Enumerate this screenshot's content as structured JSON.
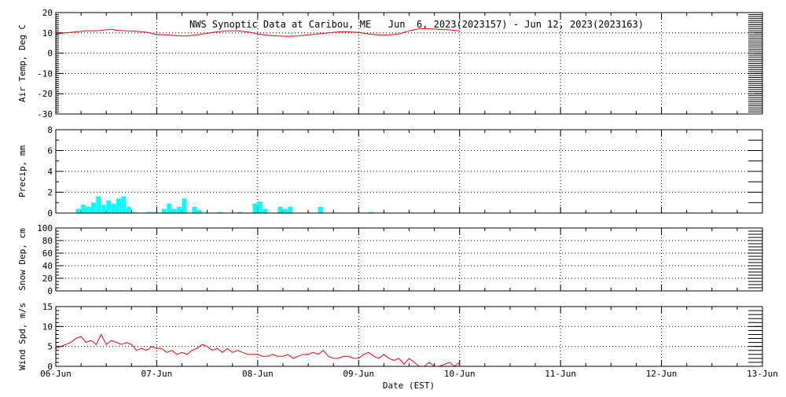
{
  "chart_data": {
    "type": "multi-panel-timeseries",
    "title": "NWS Synoptic Data at Caribou, ME   Jun  6, 2023(2023157) - Jun 12, 2023(2023163)",
    "xlabel": "Date (EST)",
    "x_ticks": [
      "06-Jun",
      "07-Jun",
      "08-Jun",
      "09-Jun",
      "10-Jun",
      "11-Jun",
      "12-Jun",
      "13-Jun"
    ],
    "x_range_days": [
      0,
      7
    ],
    "colors": {
      "line": "#ff0000",
      "bar": "#00ffff",
      "axis": "#000000"
    },
    "grid": "dotted vertical at day boundaries, dotted horizontal at labeled ticks",
    "panels": [
      {
        "id": "air-temp",
        "type": "line",
        "ylabel": "Air Temp, Deg C",
        "ylim": [
          -30,
          20
        ],
        "yticks": [
          -30,
          -20,
          -10,
          0,
          10,
          20
        ],
        "series": [
          {
            "x": [
              0.0,
              0.1,
              0.2,
              0.3,
              0.4,
              0.5,
              0.55,
              0.6,
              0.7,
              0.8,
              0.9,
              1.0,
              1.1,
              1.2,
              1.25,
              1.3,
              1.4,
              1.5,
              1.6,
              1.7,
              1.8,
              1.9,
              2.0,
              2.1,
              2.2,
              2.3,
              2.4,
              2.5,
              2.6,
              2.7,
              2.8,
              2.9,
              3.0,
              3.1,
              3.2,
              3.3,
              3.4,
              3.5,
              3.6,
              3.7,
              3.8,
              3.9,
              4.0
            ],
            "y": [
              9.5,
              10,
              10.5,
              11,
              11,
              11.5,
              11.8,
              11.3,
              11,
              10.8,
              10.3,
              9.2,
              9,
              8.7,
              8.5,
              8.5,
              9,
              9.8,
              10.5,
              11,
              11,
              10.5,
              9.5,
              8.8,
              8.5,
              8.3,
              8.5,
              9,
              9.5,
              10,
              10.5,
              10.5,
              10.2,
              9.5,
              9,
              9,
              9.5,
              11,
              12,
              12,
              11.8,
              11.5,
              11
            ]
          }
        ]
      },
      {
        "id": "precip",
        "type": "bar",
        "ylabel": "Precip, mm",
        "ylim": [
          0,
          8
        ],
        "yticks": [
          0,
          2,
          4,
          6,
          8
        ],
        "bars": {
          "x": [
            0.2,
            0.25,
            0.3,
            0.35,
            0.4,
            0.45,
            0.5,
            0.55,
            0.6,
            0.65,
            0.7,
            0.75,
            0.9,
            0.95,
            1.05,
            1.1,
            1.15,
            1.2,
            1.25,
            1.35,
            1.4,
            1.6,
            1.8,
            1.95,
            2.0,
            2.05,
            2.2,
            2.25,
            2.3,
            2.6,
            3.1
          ],
          "width": 0.05,
          "values": [
            0.4,
            0.8,
            0.6,
            1.0,
            1.6,
            0.8,
            1.2,
            0.9,
            1.4,
            1.6,
            0.6,
            0.1,
            0.1,
            0.1,
            0.4,
            0.9,
            0.4,
            0.6,
            1.4,
            0.6,
            0.3,
            0.1,
            0.1,
            0.9,
            1.1,
            0.4,
            0.6,
            0.4,
            0.6,
            0.6,
            0.1
          ]
        }
      },
      {
        "id": "snow-depth",
        "type": "line",
        "ylabel": "Snow Dep, cm",
        "ylim": [
          0,
          100
        ],
        "yticks": [
          0,
          20,
          40,
          60,
          80,
          100
        ],
        "series": []
      },
      {
        "id": "wind-speed",
        "type": "line",
        "ylabel": "Wind Spd, m/s",
        "ylim": [
          0,
          15
        ],
        "yticks": [
          0,
          5,
          10,
          15
        ],
        "series": [
          {
            "x": [
              0.0,
              0.05,
              0.1,
              0.15,
              0.2,
              0.25,
              0.3,
              0.35,
              0.4,
              0.45,
              0.5,
              0.55,
              0.6,
              0.65,
              0.7,
              0.75,
              0.8,
              0.85,
              0.9,
              0.95,
              1.0,
              1.05,
              1.1,
              1.15,
              1.2,
              1.25,
              1.3,
              1.35,
              1.4,
              1.45,
              1.5,
              1.55,
              1.6,
              1.65,
              1.7,
              1.75,
              1.8,
              1.85,
              1.9,
              1.95,
              2.0,
              2.05,
              2.1,
              2.15,
              2.2,
              2.25,
              2.3,
              2.35,
              2.4,
              2.45,
              2.5,
              2.55,
              2.6,
              2.65,
              2.7,
              2.75,
              2.8,
              2.85,
              2.9,
              2.95,
              3.0,
              3.05,
              3.1,
              3.15,
              3.2,
              3.25,
              3.3,
              3.35,
              3.4,
              3.45,
              3.5,
              3.55,
              3.6,
              3.65,
              3.7,
              3.75,
              3.8,
              3.85,
              3.9,
              3.95,
              4.0
            ],
            "y": [
              4.5,
              5,
              5.5,
              6,
              7,
              7.5,
              6,
              6.5,
              5.5,
              8,
              5.5,
              6.5,
              6,
              5.5,
              6,
              5.5,
              4,
              4.5,
              4,
              5,
              4.5,
              4.5,
              3.5,
              4,
              3,
              3.5,
              3,
              4,
              4.5,
              5.5,
              5,
              4,
              4.5,
              3.5,
              4.5,
              3.5,
              4,
              3.5,
              3,
              3,
              3,
              2.5,
              2.5,
              3,
              2.5,
              2.5,
              3,
              2,
              2.5,
              3,
              3,
              3.5,
              3,
              4,
              2.5,
              2,
              2,
              2.5,
              2.5,
              2,
              2,
              3,
              3.5,
              2.5,
              2,
              3,
              2,
              1.5,
              2,
              0.5,
              2,
              1,
              0,
              0,
              1,
              0,
              0,
              0.5,
              1,
              0,
              1
            ]
          }
        ]
      }
    ]
  }
}
